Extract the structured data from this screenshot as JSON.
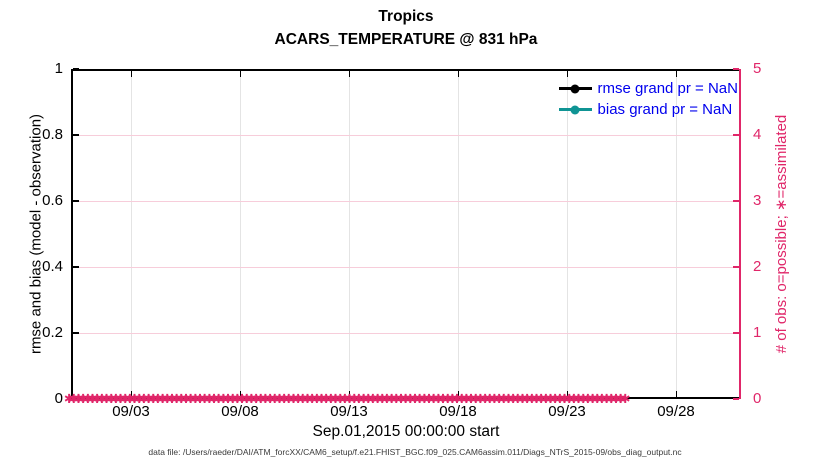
{
  "figure": {
    "title": "Tropics",
    "subtitle": "ACARS_TEMPERATURE @ 831 hPa",
    "xlabel": "Sep.01,2015 00:00:00 start",
    "ylabel_left": "rmse and bias (model - observation)",
    "ylabel_right": "# of obs: o=possible; ∗=assimilated",
    "caption": "data file: /Users/raeder/DAI/ATM_forcXX/CAM6_setup/f.e21.FHIST_BGC.f09_025.CAM6assim.011/Diags_NTrS_2015-09/obs_diag_output.nc"
  },
  "colors": {
    "axis_left": "#000000",
    "axis_right": "#e02669",
    "legend_text": "#0000ee",
    "grid_vertical": "#e4e4e4",
    "grid_horizontal": "#f7cdda",
    "obs_markers": "#e02669"
  },
  "chart_data": {
    "type": "line",
    "title": "Tropics",
    "subtitle": "ACARS_TEMPERATURE @ 831 hPa",
    "xlabel": "Sep.01,2015 00:00:00 start",
    "x_tick_labels": [
      "09/03",
      "09/08",
      "09/13",
      "09/18",
      "09/23",
      "09/28"
    ],
    "y_left": {
      "label": "rmse and bias (model - observation)",
      "range": [
        0,
        1
      ],
      "ticks": [
        "0",
        "0.2",
        "0.4",
        "0.6",
        "0.8",
        "1"
      ]
    },
    "y_right": {
      "label": "# of obs: o=possible; ∗=assimilated",
      "range": [
        0,
        5
      ],
      "ticks": [
        "0",
        "1",
        "2",
        "3",
        "4",
        "5"
      ]
    },
    "legend_position": "upper-right-inside",
    "legend": [
      {
        "label": "rmse grand pr = NaN",
        "color": "#000000"
      },
      {
        "label": "bias grand pr = NaN",
        "color": "#0f9494"
      }
    ],
    "series": [
      {
        "name": "rmse",
        "values": "NaN - no curve plotted"
      },
      {
        "name": "bias",
        "values": "NaN - no curve plotted"
      },
      {
        "name": "# of obs possible (o)",
        "n_bins": 120,
        "constant_value": 0
      },
      {
        "name": "# of obs assimilated (∗)",
        "n_bins": 120,
        "constant_value": 0
      }
    ],
    "grid": true
  }
}
